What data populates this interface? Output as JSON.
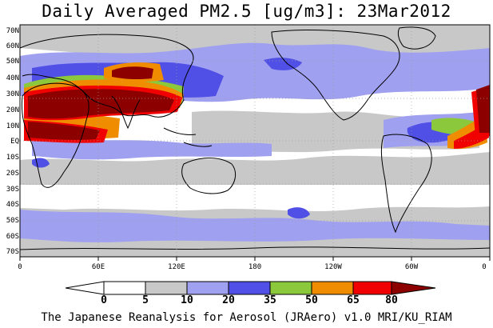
{
  "title": "Daily Averaged PM2.5 [ug/m3]: 23Mar2012",
  "footer": "The Japanese Reanalysis for Aerosol (JRAero) v1.0 MRI/KU_RIAM",
  "lat_labels": [
    "70N",
    "60N",
    "50N",
    "40N",
    "30N",
    "20N",
    "10N",
    "EQ",
    "10S",
    "20S",
    "30S",
    "40S",
    "50S",
    "60S",
    "70S"
  ],
  "lon_labels": [
    "0",
    "60E",
    "120E",
    "180",
    "120W",
    "60W",
    "0"
  ],
  "colorbar": {
    "labels": [
      "0",
      "5",
      "10",
      "20",
      "35",
      "50",
      "65",
      "80"
    ],
    "colors": [
      "#ffffff",
      "#c8c8c8",
      "#a0a0f0",
      "#5050e6",
      "#8cc83c",
      "#f08c00",
      "#f00000",
      "#8c0000"
    ]
  }
}
